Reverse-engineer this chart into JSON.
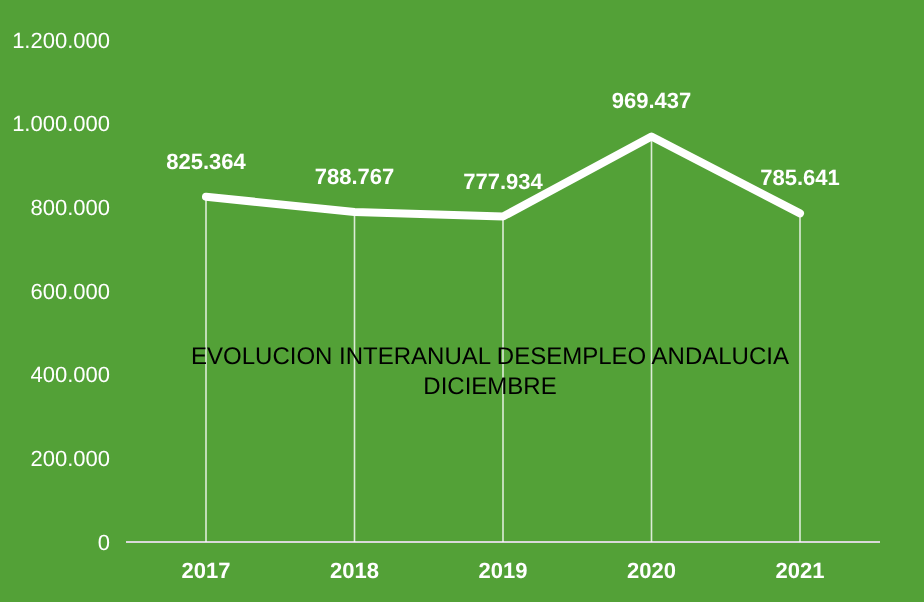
{
  "chart_data": {
    "type": "line",
    "title": "EVOLUCION INTERANUAL DESEMPLEO ANDALUCIA DICIEMBRE",
    "categories": [
      "2017",
      "2018",
      "2019",
      "2020",
      "2021"
    ],
    "series": [
      {
        "color": "#ffffff",
        "values": [
          825364,
          788767,
          777934,
          969437,
          785641
        ]
      }
    ],
    "value_labels": [
      "825.364",
      "788.767",
      "777.934",
      "969.437",
      "785.641"
    ],
    "ylim": [
      0,
      1200000
    ],
    "yticks": [
      0,
      {
        "value": 200000,
        "label": "200.000"
      },
      {
        "value": 400000,
        "label": "400.000"
      },
      {
        "value": 600000,
        "label": "600.000"
      },
      {
        "value": 800000,
        "label": "800.000"
      },
      {
        "value": 1000000,
        "label": "1.000.000"
      },
      {
        "value": 1200000,
        "label": "1.200.000"
      }
    ],
    "marker": "none",
    "line_style": "solid"
  }
}
